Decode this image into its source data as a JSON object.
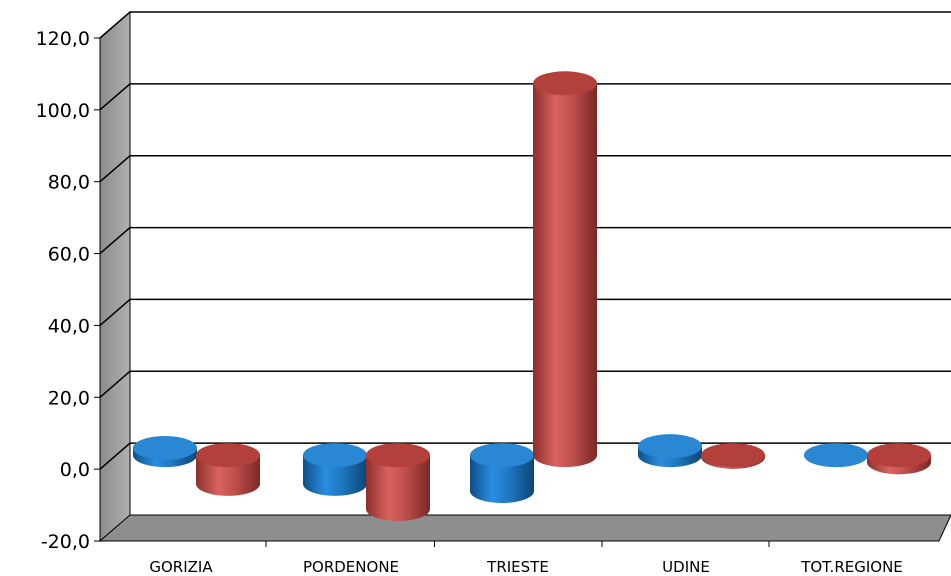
{
  "chart_data": {
    "type": "bar",
    "style": "3d-cylinder",
    "categories": [
      "GORIZIA",
      "PORDENONE",
      "TRIESTE",
      "UDINE",
      "TOT.REGIONE"
    ],
    "series": [
      {
        "values": [
          2.0,
          -8.0,
          -10.0,
          2.5,
          0.0
        ],
        "color": "#1f78c1"
      },
      {
        "values": [
          -8.0,
          -15.0,
          103.5,
          -0.5,
          -2.0
        ],
        "color": "#c0504d"
      }
    ],
    "yticks": [
      "-20,0",
      "0,0",
      "20,0",
      "40,0",
      "60,0",
      "80,0",
      "100,0",
      "120,0"
    ],
    "ylim": [
      -20,
      120
    ],
    "grid": true,
    "legend": "none",
    "title": "",
    "xlabel": "",
    "ylabel": ""
  }
}
